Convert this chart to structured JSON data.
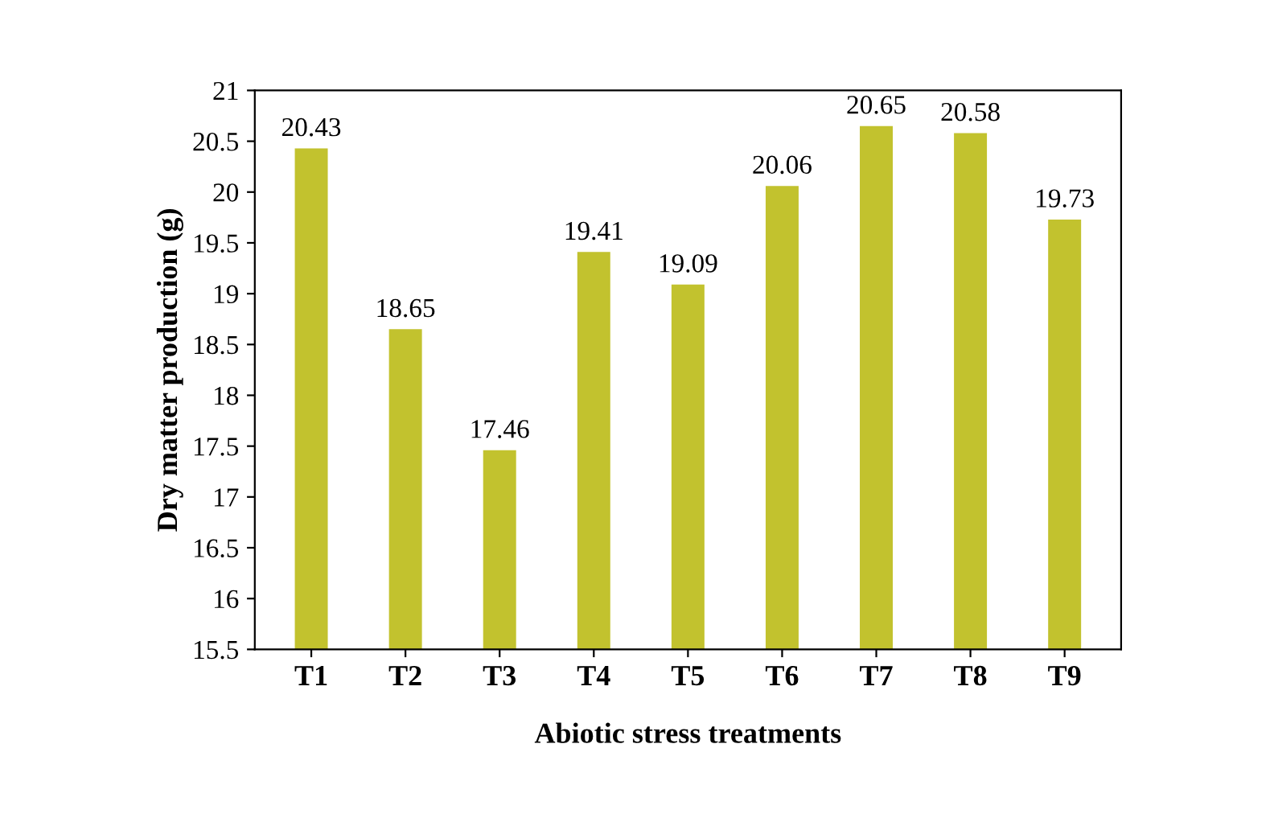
{
  "chart_data": {
    "type": "bar",
    "xlabel": "Abiotic stress treatments",
    "ylabel": "Dry matter production (g)",
    "categories": [
      "T1",
      "T2",
      "T3",
      "T4",
      "T5",
      "T6",
      "T7",
      "T8",
      "T9"
    ],
    "values": [
      20.43,
      18.65,
      17.46,
      19.41,
      19.09,
      20.06,
      20.65,
      20.58,
      19.73
    ],
    "color": "#c2c22e",
    "ylim": [
      15.5,
      21
    ],
    "yticks": [
      15.5,
      16,
      16.5,
      17,
      17.5,
      18,
      18.5,
      19,
      19.5,
      20,
      20.5,
      21
    ],
    "data_labels": true,
    "grid": false
  }
}
